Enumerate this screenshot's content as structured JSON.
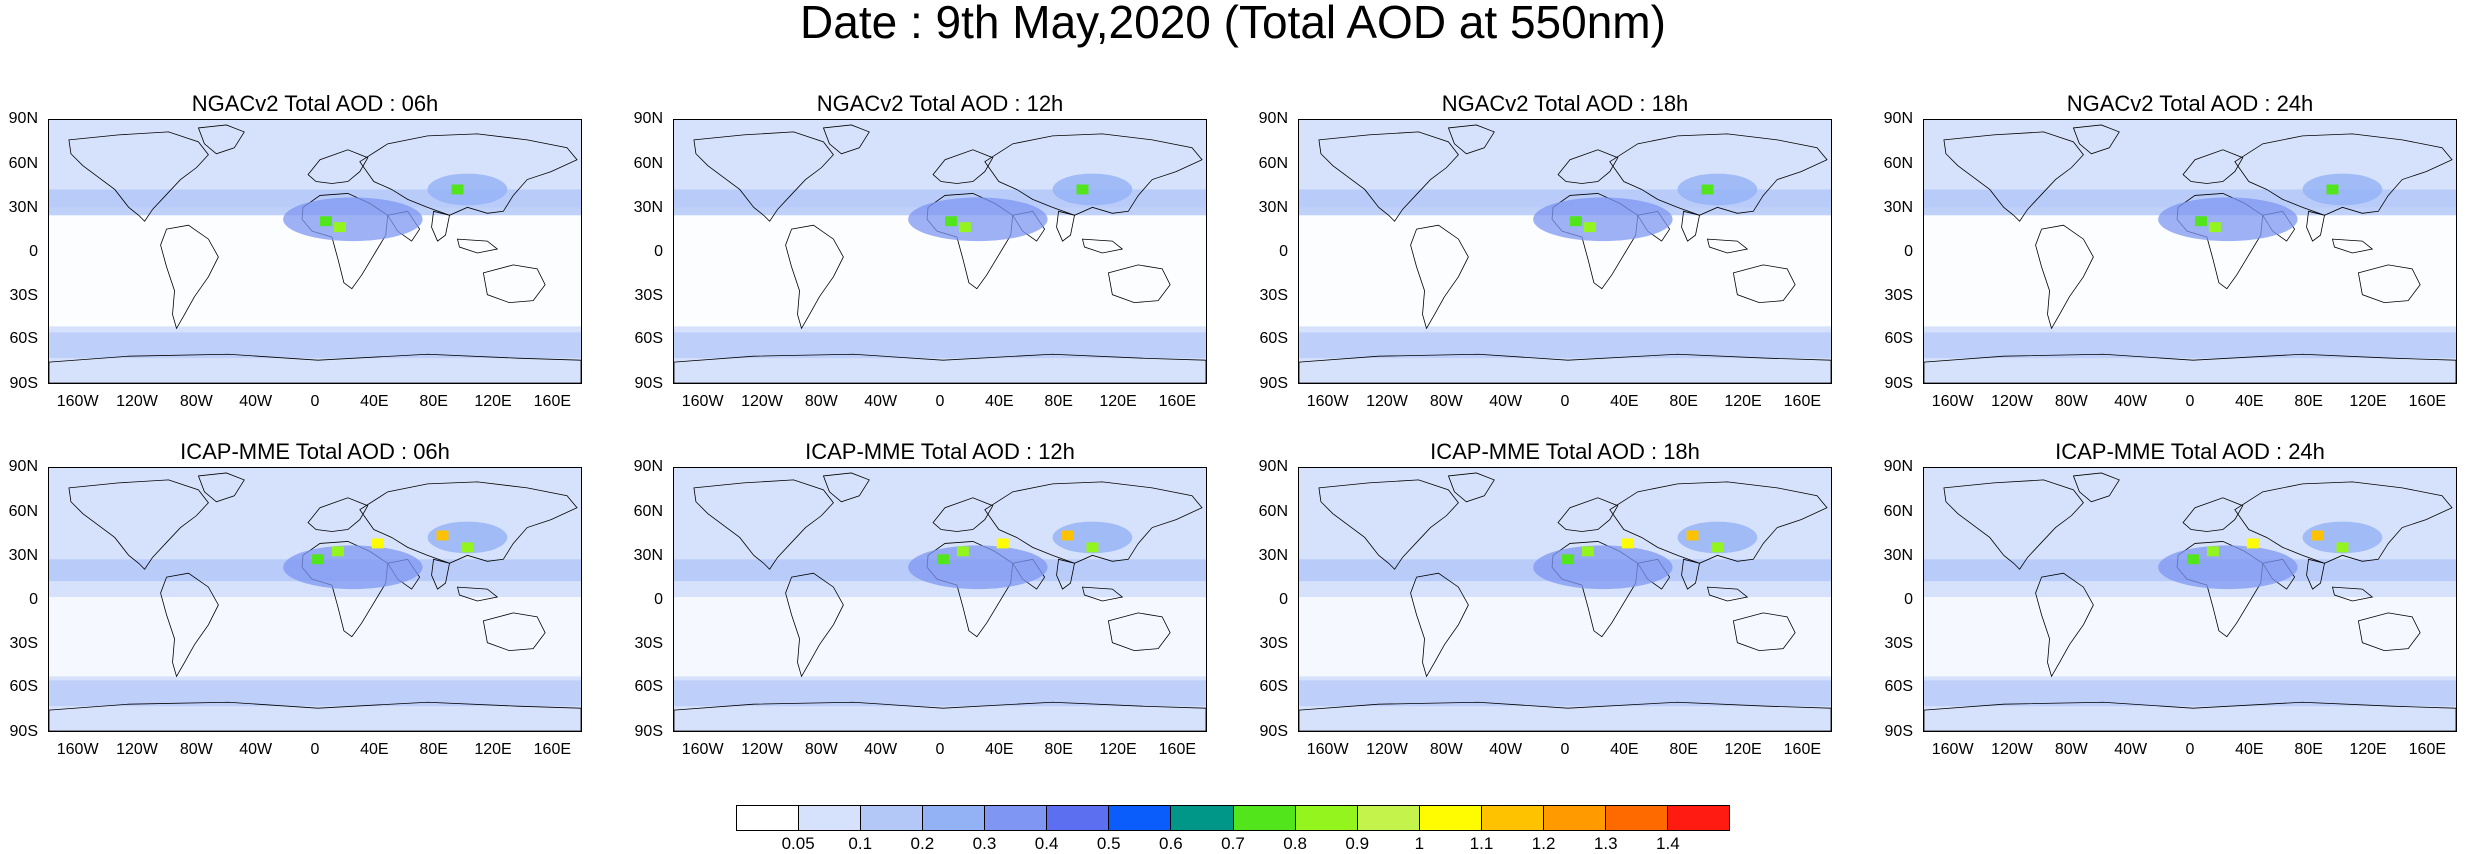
{
  "title": "Date : 9th May,2020 (Total AOD at 550nm)",
  "lat_labels": [
    "90N",
    "60N",
    "30N",
    "0",
    "30S",
    "60S",
    "90S"
  ],
  "lon_labels": [
    "160W",
    "120W",
    "80W",
    "40W",
    "0",
    "40E",
    "80E",
    "120E",
    "160E"
  ],
  "panels": [
    {
      "title": "NGACv2 Total AOD : 06h",
      "model": "NGACv2",
      "hour": "06h"
    },
    {
      "title": "NGACv2 Total AOD : 12h",
      "model": "NGACv2",
      "hour": "12h"
    },
    {
      "title": "NGACv2 Total AOD : 18h",
      "model": "NGACv2",
      "hour": "18h"
    },
    {
      "title": "NGACv2 Total AOD : 24h",
      "model": "NGACv2",
      "hour": "24h"
    },
    {
      "title": "ICAP-MME Total AOD : 06h",
      "model": "ICAP-MME",
      "hour": "06h"
    },
    {
      "title": "ICAP-MME Total AOD : 12h",
      "model": "ICAP-MME",
      "hour": "12h"
    },
    {
      "title": "ICAP-MME Total AOD : 18h",
      "model": "ICAP-MME",
      "hour": "18h"
    },
    {
      "title": "ICAP-MME Total AOD : 24h",
      "model": "ICAP-MME",
      "hour": "24h"
    }
  ],
  "colorbar": {
    "labels": [
      "0.05",
      "0.1",
      "0.2",
      "0.3",
      "0.4",
      "0.5",
      "0.6",
      "0.7",
      "0.8",
      "0.9",
      "1",
      "1.1",
      "1.2",
      "1.3",
      "1.4"
    ],
    "colors": [
      "#ffffff",
      "#d6e2fb",
      "#b4c8f8",
      "#93b2f6",
      "#7f97f2",
      "#5c6ff0",
      "#0a5dfa",
      "#009688",
      "#52e51b",
      "#93f51d",
      "#c4f44b",
      "#fffb00",
      "#ffc200",
      "#ff9a00",
      "#ff6a00",
      "#ff1a12"
    ]
  },
  "colors": {
    "ocean_base": "#d6e2fb",
    "land_low": "#ffffff",
    "moderate": "#b4c8f8",
    "high": "#7f97f2"
  }
}
